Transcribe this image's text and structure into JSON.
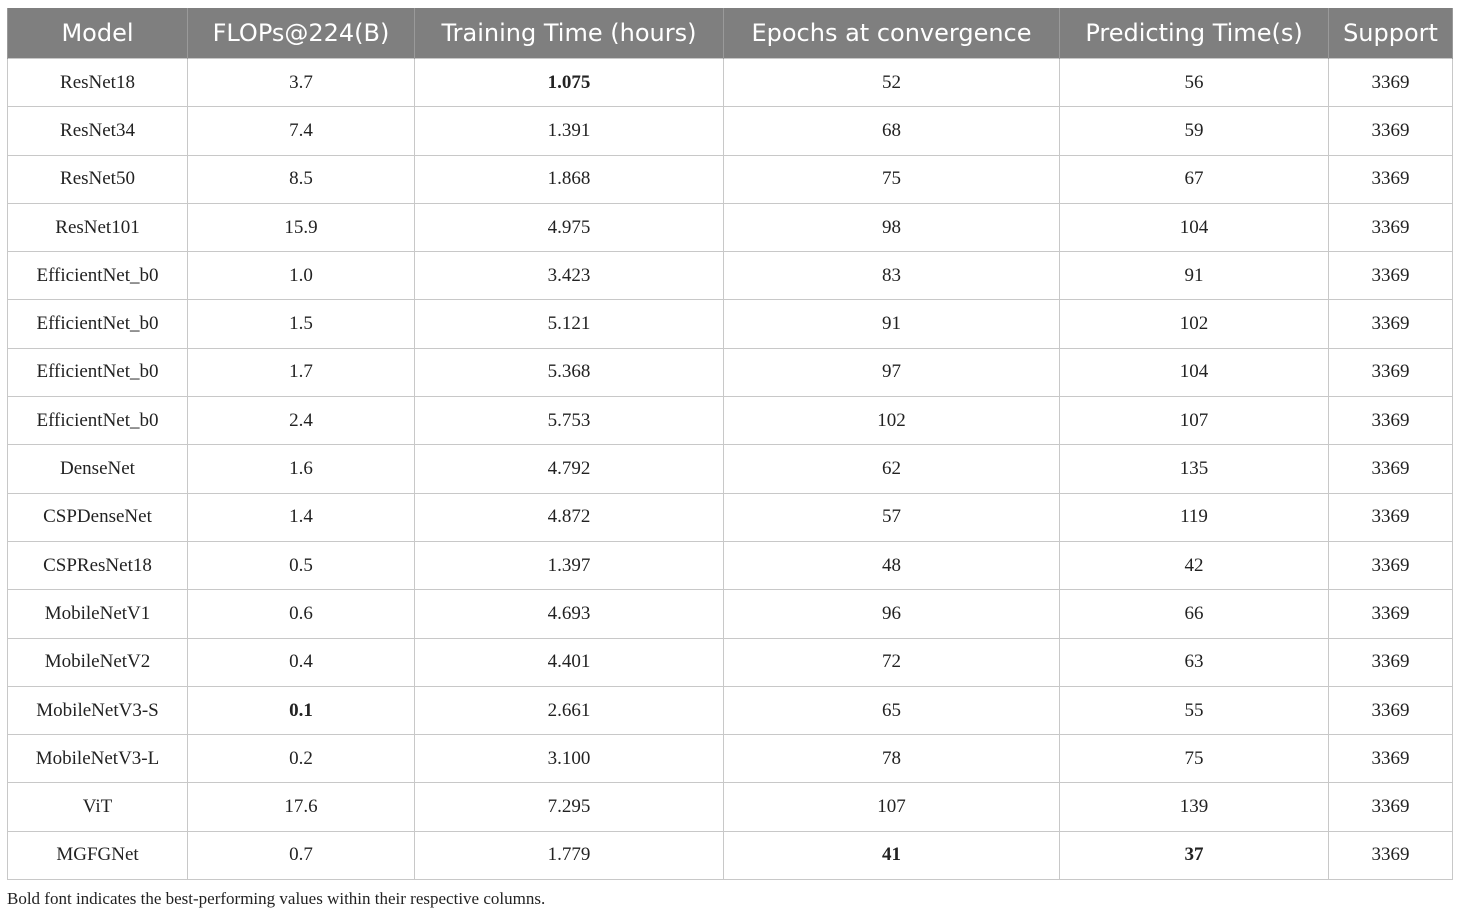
{
  "table": {
    "headers": [
      "Model",
      "FLOPs@224(B)",
      "Training Time (hours)",
      "Epochs at convergence",
      "Predicting Time(s)",
      "Support"
    ],
    "rows": [
      [
        "ResNet18",
        "3.7",
        "1.075",
        "52",
        "56",
        "3369"
      ],
      [
        "ResNet34",
        "7.4",
        "1.391",
        "68",
        "59",
        "3369"
      ],
      [
        "ResNet50",
        "8.5",
        "1.868",
        "75",
        "67",
        "3369"
      ],
      [
        "ResNet101",
        "15.9",
        "4.975",
        "98",
        "104",
        "3369"
      ],
      [
        "EfficientNet_b0",
        "1.0",
        "3.423",
        "83",
        "91",
        "3369"
      ],
      [
        "EfficientNet_b0",
        "1.5",
        "5.121",
        "91",
        "102",
        "3369"
      ],
      [
        "EfficientNet_b0",
        "1.7",
        "5.368",
        "97",
        "104",
        "3369"
      ],
      [
        "EfficientNet_b0",
        "2.4",
        "5.753",
        "102",
        "107",
        "3369"
      ],
      [
        "DenseNet",
        "1.6",
        "4.792",
        "62",
        "135",
        "3369"
      ],
      [
        "CSPDenseNet",
        "1.4",
        "4.872",
        "57",
        "119",
        "3369"
      ],
      [
        "CSPResNet18",
        "0.5",
        "1.397",
        "48",
        "42",
        "3369"
      ],
      [
        "MobileNetV1",
        "0.6",
        "4.693",
        "96",
        "66",
        "3369"
      ],
      [
        "MobileNetV2",
        "0.4",
        "4.401",
        "72",
        "63",
        "3369"
      ],
      [
        "MobileNetV3-S",
        "0.1",
        "2.661",
        "65",
        "55",
        "3369"
      ],
      [
        "MobileNetV3-L",
        "0.2",
        "3.100",
        "78",
        "75",
        "3369"
      ],
      [
        "ViT",
        "17.6",
        "7.295",
        "107",
        "139",
        "3369"
      ],
      [
        "MGFGNet",
        "0.7",
        "1.779",
        "41",
        "37",
        "3369"
      ]
    ],
    "bold_cells": [
      {
        "row": 0,
        "col": 2
      },
      {
        "row": 13,
        "col": 1
      },
      {
        "row": 16,
        "col": 3
      },
      {
        "row": 16,
        "col": 4
      }
    ]
  },
  "footnote": "Bold font indicates the best-performing values within their respective columns."
}
